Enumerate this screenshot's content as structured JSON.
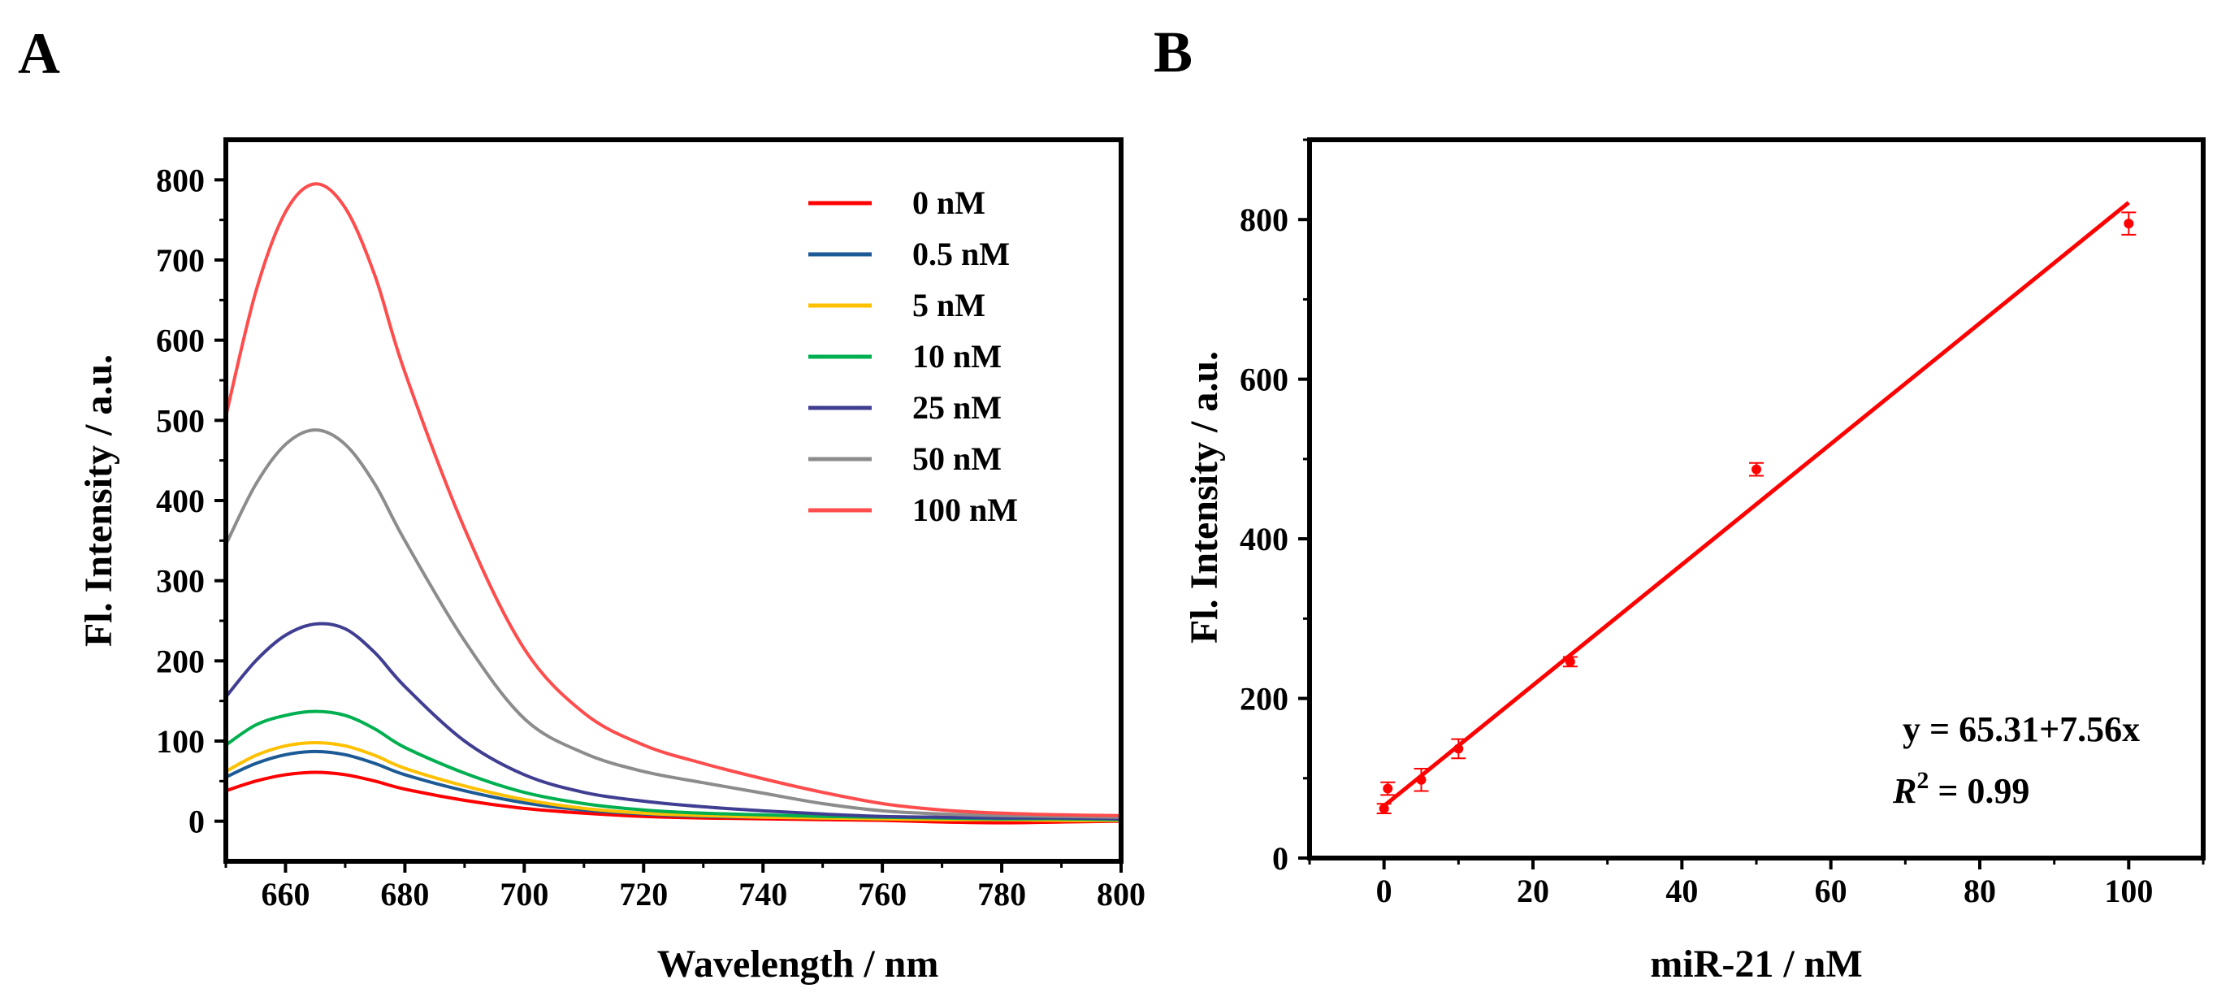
{
  "chart_data": [
    {
      "panel": "A",
      "type": "line",
      "title": "",
      "xlabel": "Wavelength / nm",
      "ylabel": "Fl. Intensity / a.u.",
      "xlim": [
        650,
        800
      ],
      "ylim": [
        -50,
        850
      ],
      "xticks": [
        660,
        680,
        700,
        720,
        740,
        760,
        780,
        800
      ],
      "yticks": [
        0,
        100,
        200,
        300,
        400,
        500,
        600,
        700,
        800
      ],
      "legend_position": "top-right",
      "x": [
        650,
        655,
        660,
        665,
        670,
        675,
        680,
        690,
        700,
        710,
        720,
        730,
        740,
        750,
        760,
        770,
        780,
        790,
        800
      ],
      "series": [
        {
          "name": "0 nM",
          "color": "#ff0000",
          "values": [
            38,
            50,
            58,
            61,
            58,
            50,
            40,
            26,
            16,
            10,
            6,
            4,
            3,
            2,
            1,
            -1,
            -2,
            -1,
            0
          ]
        },
        {
          "name": "0.5 nM",
          "color": "#1c5a96",
          "values": [
            55,
            72,
            83,
            87,
            83,
            72,
            58,
            38,
            23,
            14,
            9,
            6,
            5,
            4,
            3,
            2,
            2,
            1,
            1
          ]
        },
        {
          "name": "5 nM",
          "color": "#ffc000",
          "values": [
            62,
            82,
            94,
            98,
            94,
            82,
            66,
            44,
            27,
            16,
            10,
            7,
            5,
            4,
            3,
            2,
            2,
            1,
            1
          ]
        },
        {
          "name": "10 nM",
          "color": "#00b050",
          "values": [
            95,
            120,
            132,
            137,
            132,
            115,
            92,
            60,
            36,
            22,
            14,
            10,
            8,
            6,
            5,
            4,
            3,
            3,
            2
          ]
        },
        {
          "name": "25 nM",
          "color": "#403e92",
          "values": [
            155,
            200,
            232,
            246,
            240,
            210,
            168,
            100,
            58,
            36,
            25,
            18,
            13,
            9,
            6,
            5,
            4,
            4,
            3
          ]
        },
        {
          "name": "50 nM",
          "color": "#8c8c8c",
          "values": [
            345,
            420,
            470,
            488,
            470,
            420,
            350,
            225,
            128,
            85,
            62,
            48,
            35,
            22,
            13,
            9,
            7,
            6,
            5
          ]
        },
        {
          "name": "100 nM",
          "color": "#ff4c4c",
          "values": [
            505,
            660,
            760,
            795,
            765,
            680,
            560,
            365,
            215,
            135,
            95,
            72,
            53,
            36,
            22,
            14,
            10,
            8,
            7
          ]
        }
      ]
    },
    {
      "panel": "B",
      "type": "scatter",
      "title": "",
      "xlabel": "miR-21 / nM",
      "ylabel": "Fl. Intensity / a.u.",
      "xlim": [
        -10,
        110
      ],
      "ylim": [
        0,
        900
      ],
      "xticks": [
        0,
        20,
        40,
        60,
        80,
        100
      ],
      "yticks": [
        0,
        200,
        400,
        600,
        800
      ],
      "color": "#ff0000",
      "points": [
        {
          "x": 0,
          "y": 62,
          "err": 6
        },
        {
          "x": 0.5,
          "y": 87,
          "err": 8
        },
        {
          "x": 5,
          "y": 98,
          "err": 14
        },
        {
          "x": 10,
          "y": 137,
          "err": 12
        },
        {
          "x": 25,
          "y": 246,
          "err": 6
        },
        {
          "x": 50,
          "y": 487,
          "err": 8
        },
        {
          "x": 100,
          "y": 795,
          "err": 14
        }
      ],
      "fit": {
        "intercept": 65.31,
        "slope": 7.56,
        "x_range": [
          0,
          100
        ]
      },
      "equation": "y = 65.31+7.56x",
      "r2_label": "R",
      "r2_sup": "2",
      "r2_value": " = 0.99"
    }
  ],
  "labels": {
    "panel_a": "A",
    "panel_b": "B"
  }
}
